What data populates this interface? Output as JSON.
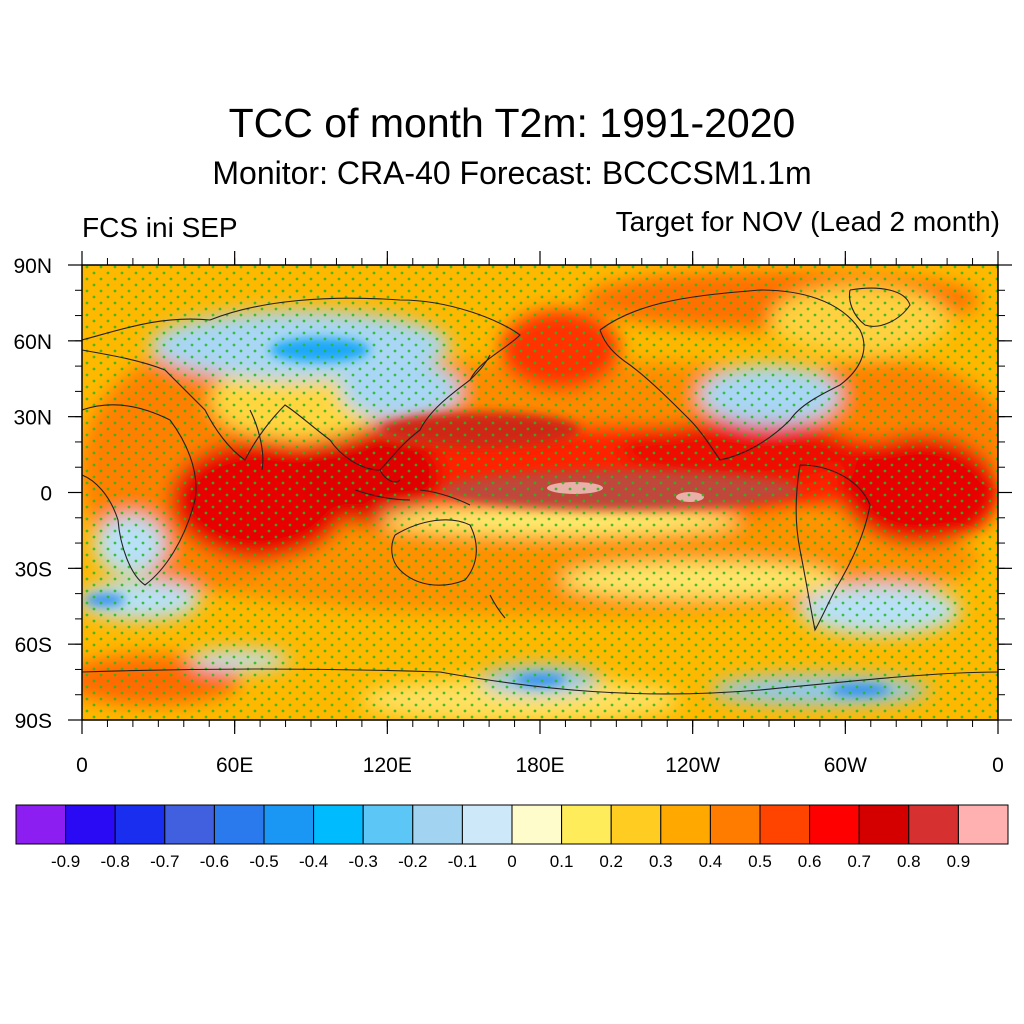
{
  "title": "TCC of month T2m: 1991-2020",
  "subtitle": "Monitor: CRA-40   Forecast: BCCCSM1.1m",
  "left_label": "FCS ini SEP",
  "right_label": "Target for NOV (Lead 2 month)",
  "map": {
    "projection": "cylindrical-equidistant",
    "lon_range": [
      0,
      360
    ],
    "lat_range": [
      -90,
      90
    ],
    "lat_ticks": [
      {
        "value": 90,
        "label": "90N"
      },
      {
        "value": 60,
        "label": "60N"
      },
      {
        "value": 30,
        "label": "30N"
      },
      {
        "value": 0,
        "label": "0"
      },
      {
        "value": -30,
        "label": "30S"
      },
      {
        "value": -60,
        "label": "60S"
      },
      {
        "value": -90,
        "label": "90S"
      }
    ],
    "lon_ticks": [
      {
        "value": 0,
        "label": "0"
      },
      {
        "value": 60,
        "label": "60E"
      },
      {
        "value": 120,
        "label": "120E"
      },
      {
        "value": 180,
        "label": "180E"
      },
      {
        "value": 240,
        "label": "120W"
      },
      {
        "value": 300,
        "label": "60W"
      },
      {
        "value": 360,
        "label": "0"
      }
    ],
    "stippling": "significant-dots",
    "stipple_color": "#22bb22"
  },
  "colorbar": {
    "colors": [
      "#8c1ef2",
      "#2a0af5",
      "#1a2ef0",
      "#4060e0",
      "#2a7aee",
      "#1a96f5",
      "#00bcff",
      "#5cc6f6",
      "#a2d4f2",
      "#cde8f8",
      "#fffccc",
      "#ffec5a",
      "#ffcc22",
      "#ffa800",
      "#ff7c00",
      "#ff4400",
      "#ff0000",
      "#d40000",
      "#d63030",
      "#ffb0b0"
    ],
    "labels": [
      "-0.9",
      "-0.8",
      "-0.7",
      "-0.6",
      "-0.5",
      "-0.4",
      "-0.3",
      "-0.2",
      "-0.1",
      "0",
      "0.1",
      "0.2",
      "0.3",
      "0.4",
      "0.5",
      "0.6",
      "0.7",
      "0.8",
      "0.9"
    ]
  }
}
